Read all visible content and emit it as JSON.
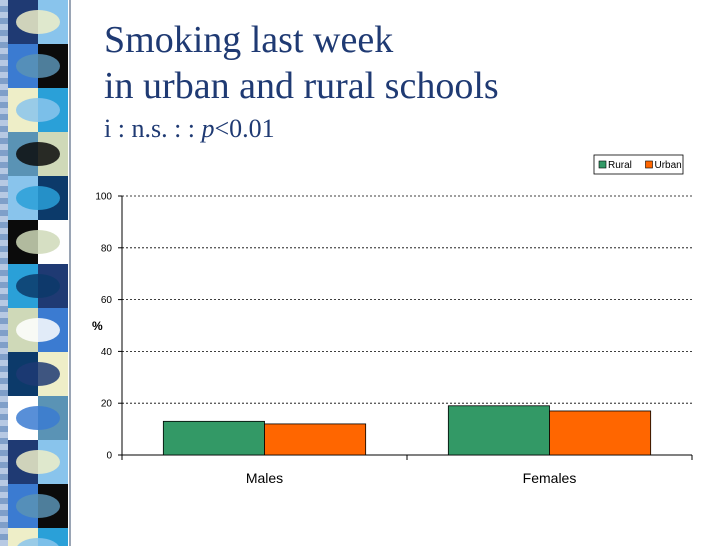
{
  "slide": {
    "title_line1": "Smoking last week",
    "title_line2": "in urban and rural schools",
    "stat_prefix": "i : n.s. : : ",
    "stat_p": "p",
    "stat_suffix": "<0.01"
  },
  "colors": {
    "title": "#1f3a73",
    "rural": "#339966",
    "urban": "#ff6600"
  },
  "chart_data": {
    "type": "bar",
    "categories": [
      "Males",
      "Females"
    ],
    "series": [
      {
        "name": "Rural",
        "values": [
          13,
          19
        ],
        "color": "#339966"
      },
      {
        "name": "Urban",
        "values": [
          12,
          17
        ],
        "color": "#ff6600"
      }
    ],
    "ylabel": "%",
    "ylim": [
      0,
      100
    ],
    "yticks": [
      0,
      20,
      40,
      60,
      80,
      100
    ],
    "grid": true,
    "legend_position": "top-right"
  }
}
